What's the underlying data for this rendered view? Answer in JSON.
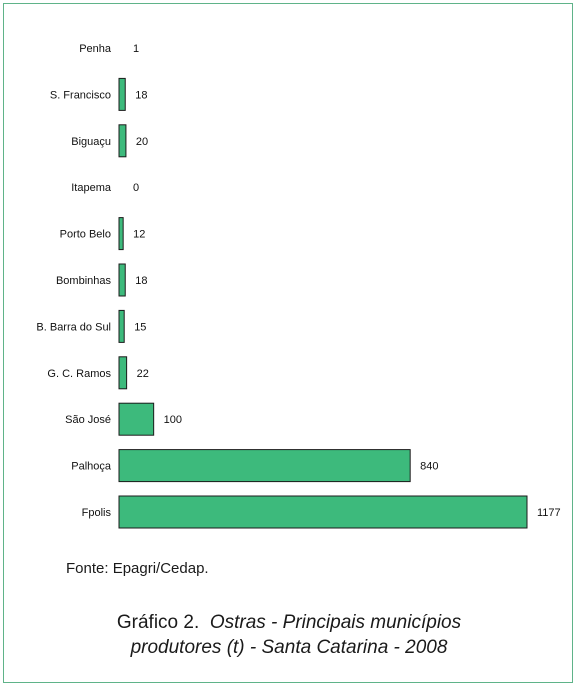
{
  "chart_data": {
    "type": "bar",
    "orientation": "horizontal",
    "categories": [
      "Penha",
      "S. Francisco",
      "Biguaçu",
      "Itapema",
      "Porto Belo",
      "Bombinhas",
      "B. Barra do Sul",
      "G. C. Ramos",
      "São José",
      "Palhoça",
      "Fpolis"
    ],
    "values": [
      1,
      18,
      20,
      0,
      12,
      18,
      15,
      22,
      100,
      840,
      1177
    ],
    "value_labels": [
      "1",
      "18",
      "20",
      "0",
      "12",
      "18",
      "15",
      "22",
      "100",
      "840",
      "1177"
    ],
    "xlim": [
      0,
      1177
    ],
    "grid": false,
    "legend": "none",
    "bar_color": "#3dba7c",
    "bar_edge_color": "#1b1b1b"
  },
  "source": "Fonte: Epagri/Cedap.",
  "caption": {
    "prefix": "Gráfico 2.",
    "italic_line1": "Ostras - Principais municípios",
    "italic_line2": "produtores (t) - Santa Catarina - 2008"
  }
}
